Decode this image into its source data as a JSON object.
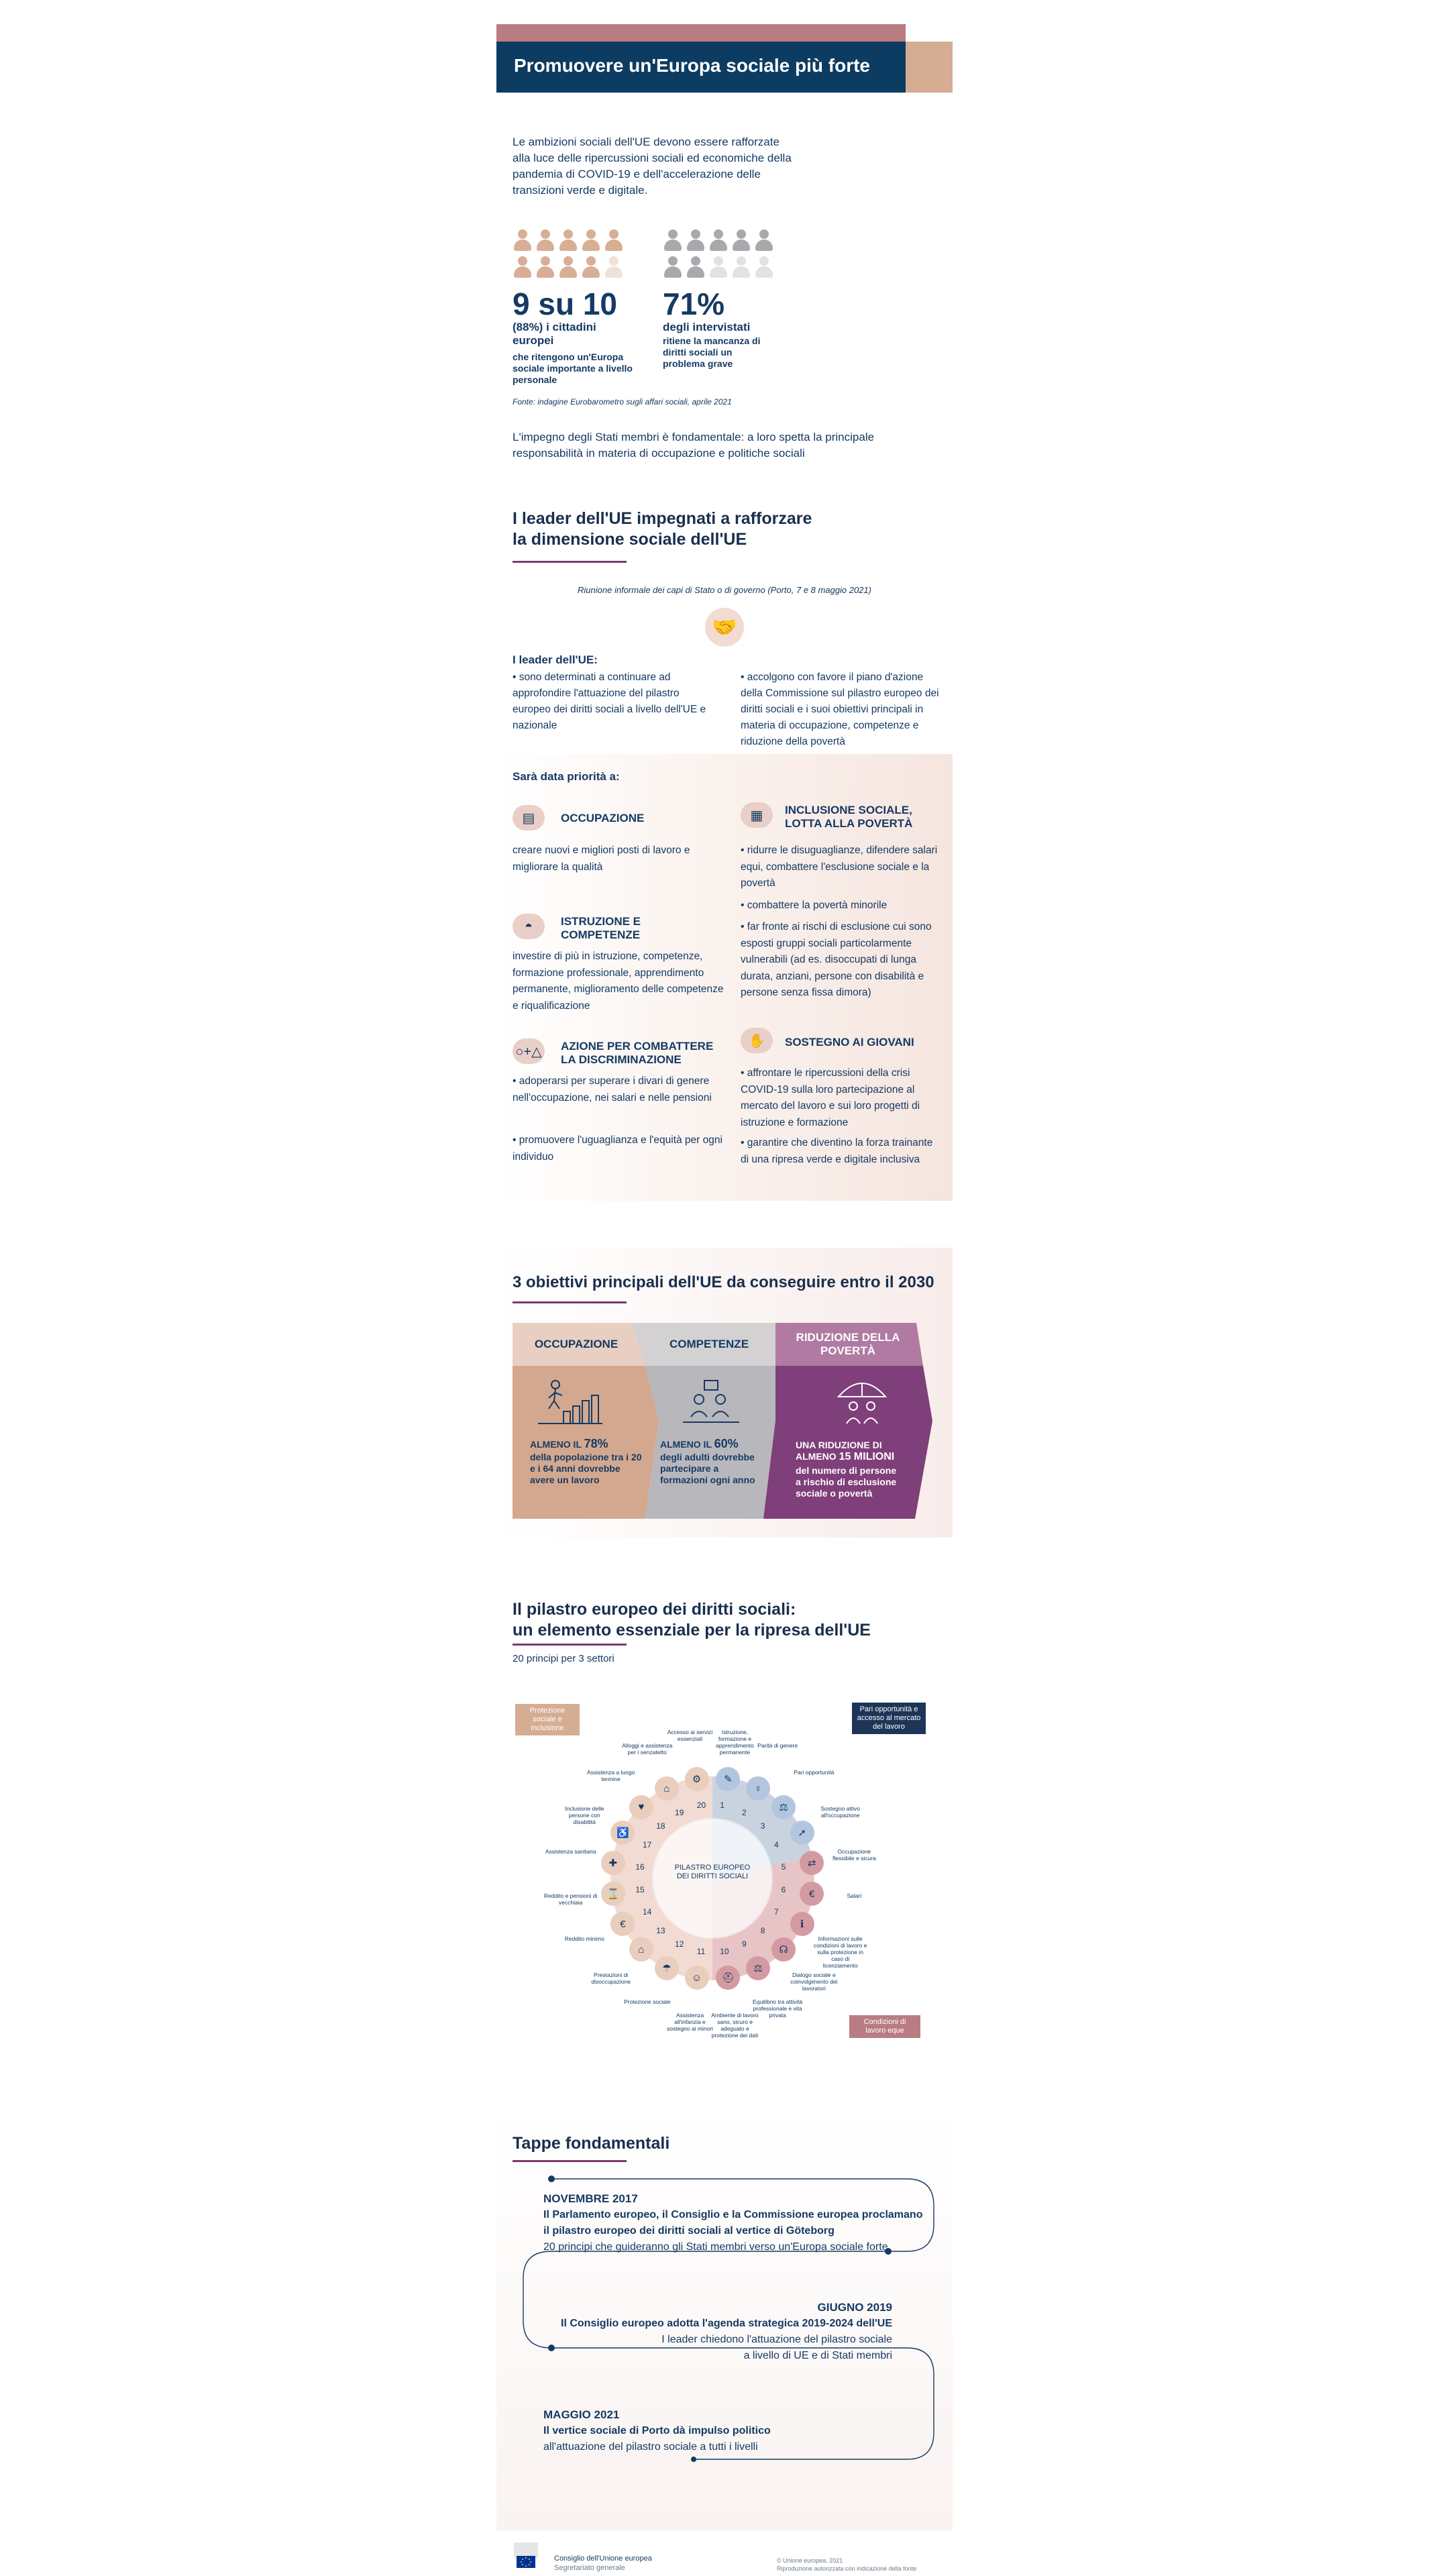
{
  "header": {
    "title": "Promuovere un'Europa sociale più forte"
  },
  "intro": "Le ambizioni sociali dell'UE devono essere rafforzate alla luce delle ripercussioni sociali ed economiche della pandemia di COVID-19 e dell'accelerazione delle transizioni verde e digitale.",
  "stats": [
    {
      "big": "9 su 10",
      "line1": "(88%) i cittadini",
      "line2": "europei",
      "small": "che ritengono un'Europa sociale importante a livello personale",
      "filled": 9,
      "color": "#d8ae95"
    },
    {
      "big": "71%",
      "line1": "degli intervistati",
      "small": "ritiene la mancanza di diritti sociali un problema grave",
      "filled": 7,
      "color": "#a9a9ad"
    }
  ],
  "source": "Fonte: indagine Eurobarometro sugli affari sociali, aprile 2021",
  "paragraph": "L'impegno degli Stati membri è fondamentale: a loro spetta la principale responsabilità in materia di occupazione e politiche sociali",
  "leaders": {
    "title_l1": "I leader dell'UE impegnati a rafforzare",
    "title_l2": "la dimensione sociale dell'UE",
    "meeting": "Riunione informale dei capi di Stato o di governo (Porto, 7 e 8 maggio 2021)",
    "heading": "I leader dell'UE:",
    "left": "• sono determinati a continuare ad approfondire l'attuazione del pilastro europeo dei diritti sociali a livello dell'UE e nazionale",
    "right": "• accolgono con favore il piano d'azione della Commissione sul pilastro europeo dei diritti sociali e i suoi obiettivi principali in materia di occupazione, competenze e riduzione della povertà"
  },
  "priorities": {
    "heading": "Sarà data priorità a:",
    "occupazione": {
      "title": "OCCUPAZIONE",
      "text": "creare nuovi e migliori posti di lavoro e migliorare la qualità"
    },
    "istruzione": {
      "title": "ISTRUZIONE E COMPETENZE",
      "text": "investire di più in istruzione, competenze, formazione professionale, apprendimento permanente, miglioramento delle competenze e riqualificazione"
    },
    "discriminazione": {
      "title": "AZIONE PER COMBATTERE LA DISCRIMINAZIONE",
      "b1": "• adoperarsi per superare i divari di genere nell'occupazione, nei salari e nelle pensioni",
      "b2": "• promuovere l'uguaglianza e l'equità per ogni individuo"
    },
    "inclusione": {
      "title": "INCLUSIONE SOCIALE, LOTTA ALLA POVERTÀ",
      "b1": "• ridurre le disuguaglianze, difendere salari equi, combattere l'esclusione sociale e la povertà",
      "b2": "• combattere la povertà minorile",
      "b3": "• far fronte ai rischi di esclusione cui sono esposti gruppi sociali particolarmente vulnerabili (ad es. disoccupati di lunga durata, anziani, persone con disabilità e persone senza fissa dimora)"
    },
    "giovani": {
      "title": "SOSTEGNO AI GIOVANI",
      "b1": "• affrontare le ripercussioni della crisi COVID-19 sulla loro partecipazione al mercato del lavoro e sui loro progetti di istruzione e formazione",
      "b2": "• garantire che diventino la forza trainante di una ripresa verde e digitale inclusiva"
    }
  },
  "objectives": {
    "title": "3 obiettivi principali dell'UE da conseguire entro il 2030",
    "items": [
      {
        "head": "OCCUPAZIONE",
        "pre": "ALMENO IL ",
        "value": "78%",
        "text": "della popolazione tra i 20 e i 64 anni dovrebbe avere un lavoro",
        "head_bg": "#e8cfc1",
        "body_bg": "#d3a88f",
        "text_color": "#153a63"
      },
      {
        "head": "COMPETENZE",
        "pre": "ALMENO IL ",
        "value": "60%",
        "text": "degli adulti dovrebbe partecipare a formazioni ogni anno",
        "head_bg": "#d4d1d3",
        "body_bg": "#b8b7bc",
        "text_color": "#153a63"
      },
      {
        "head": "RIDUZIONE DELLA POVERTÀ",
        "pre": "UNA RIDUZIONE DI ALMENO ",
        "value": "15 MILIONI",
        "text": "del numero di persone a rischio di esclusione sociale o povertà",
        "head_bg": "#b07aa3",
        "body_bg": "#7f3f7a",
        "text_color": "#ffffff"
      }
    ]
  },
  "pillar": {
    "title_l1": "Il pilastro europeo dei diritti sociali:",
    "title_l2": "un elemento essenziale per la ripresa dell'UE",
    "subtitle": "20 principi per 3 settori",
    "center": "PILASTRO EUROPEO DEI DIRITTI SOCIALI",
    "tag_protezione": "Protezione sociale e inclusione",
    "tag_pari": "Pari opportunità e accesso al mercato del lavoro",
    "tag_condizioni": "Condizioni di lavoro eque",
    "principles": [
      "Istruzione, formazione e apprendimento permanente",
      "Parità di genere",
      "Pari opportunità",
      "Sostegno attivo all'occupazione",
      "Occupazione flessibile e sicura",
      "Salari",
      "Informazioni sulle condizioni di lavoro e sulla protezione in caso di licenziamento",
      "Dialogo sociale e coinvolgimento dei lavoratori",
      "Equilibrio tra attività professionale e vita privata",
      "Ambiente di lavoro sano, sicuro e adeguato e protezione dei dati",
      "Assistenza all'infanzia e sostegno ai minori",
      "Protezione sociale",
      "Prestazioni di disoccupazione",
      "Reddito minimo",
      "Reddito e pensioni di vecchiaia",
      "Assistenza sanitaria",
      "Inclusione delle persone con disabilità",
      "Assistenza a lungo termine",
      "Alloggi e assistenza per i senzatetto",
      "Accesso ai servizi essenziali"
    ]
  },
  "timeline": {
    "title": "Tappe fondamentali",
    "e1": {
      "date": "NOVEMBRE 2017",
      "b1": "Il Parlamento europeo, il Consiglio e la Commissione europea proclamano",
      "b2": "il pilastro europeo dei diritti sociali al vertice di Göteborg",
      "n": "20 principi che guideranno gli Stati membri verso un'Europa sociale forte"
    },
    "e2": {
      "date": "GIUGNO 2019",
      "b": "Il Consiglio europeo adotta l'agenda strategica 2019-2024 dell'UE",
      "n1": "I leader chiedono l'attuazione del pilastro sociale",
      "n2": "a livello di UE e di Stati membri"
    },
    "e3": {
      "date": "MAGGIO 2021",
      "b": "Il vertice sociale di Porto dà impulso politico",
      "n": "all'attuazione del pilastro sociale a tutti i livelli"
    }
  },
  "footer": {
    "org": "Consiglio dell'Unione europea",
    "dept": "Segretariato generale",
    "copyright": "© Unione europea, 2021",
    "reproduction": "Riproduzione autorizzata con indicazione della fonte"
  }
}
